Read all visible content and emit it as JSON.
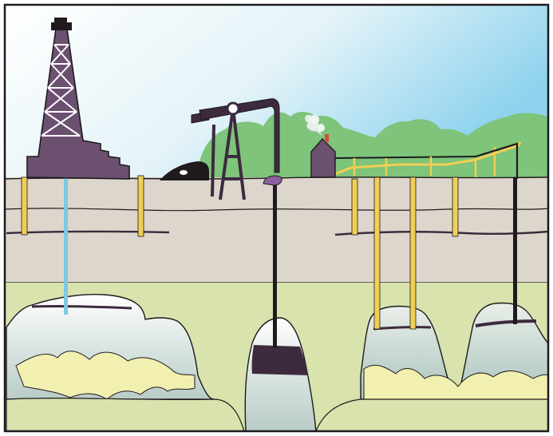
{
  "illustration": {
    "subject": "oil-field-cross-section",
    "colors": {
      "sky_top": "#ffffff",
      "sky_bottom": "#8fd3ee",
      "hills": "#7ec47a",
      "surface_soil": "#ddd6cc",
      "deep_ground": "#d8e3ad",
      "reservoir": "#c9d8d4",
      "oil_deposit": "#f1f0b0",
      "derrick": "#6b5070",
      "pump_jack": "#3d2a3e",
      "pipe_yellow": "#f0cf55",
      "pipe_blue": "#7ec8e3",
      "pipe_black": "#1e1a1d",
      "outline": "#1e1a1d"
    },
    "icons": [
      "oil-derrick-icon",
      "pump-jack-icon",
      "building-icon",
      "smoke-icon"
    ]
  }
}
